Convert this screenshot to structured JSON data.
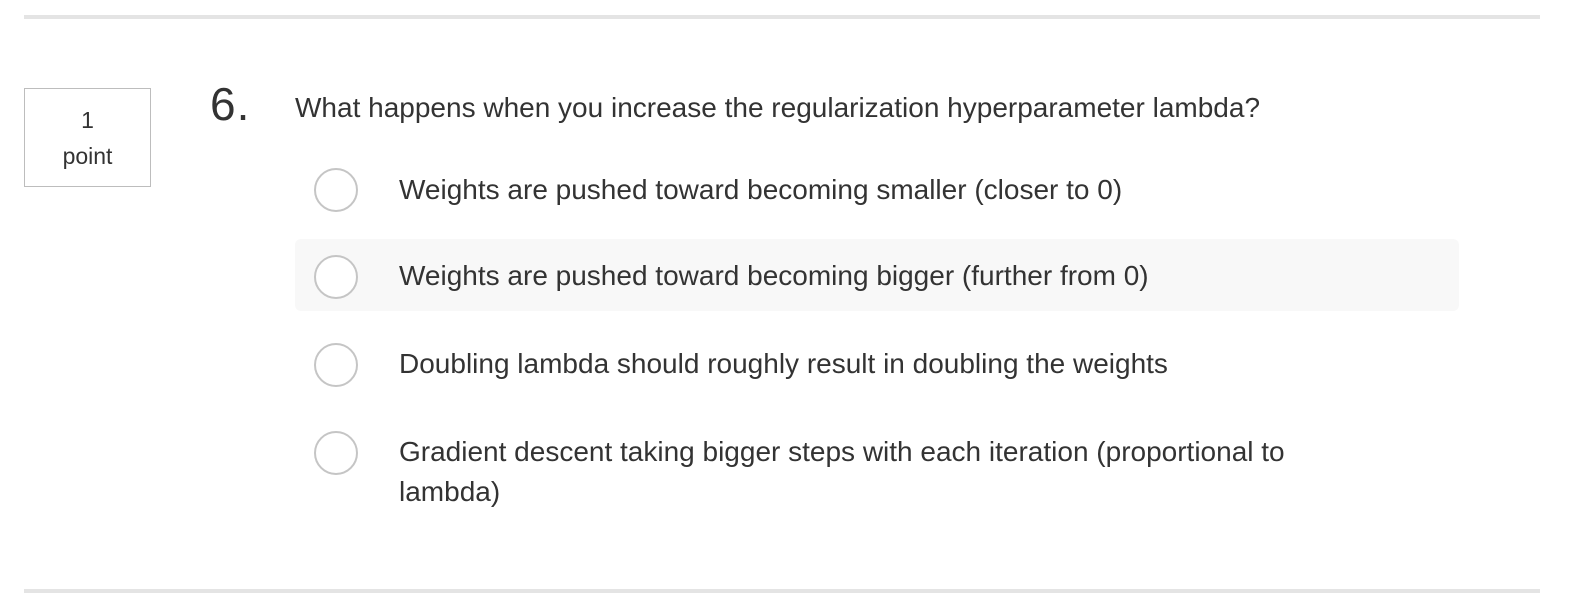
{
  "points": {
    "value": "1",
    "unit": "point"
  },
  "question": {
    "number": "6.",
    "text": "What happens when you increase the regularization hyperparameter lambda?"
  },
  "options": [
    {
      "label": "Weights are pushed toward becoming smaller (closer to 0)",
      "selected": false
    },
    {
      "label": "Weights are pushed toward becoming bigger (further from 0)",
      "selected": false,
      "hovered": true
    },
    {
      "label": "Doubling lambda should roughly result in doubling the weights",
      "selected": false
    },
    {
      "label": "Gradient descent taking bigger steps with each iteration (proportional to lambda)",
      "selected": false
    }
  ],
  "colors": {
    "text": "#333333",
    "rule": "#e4e4e4",
    "radio_border": "#c5c5c5",
    "hover_bg": "#f8f8f8"
  }
}
